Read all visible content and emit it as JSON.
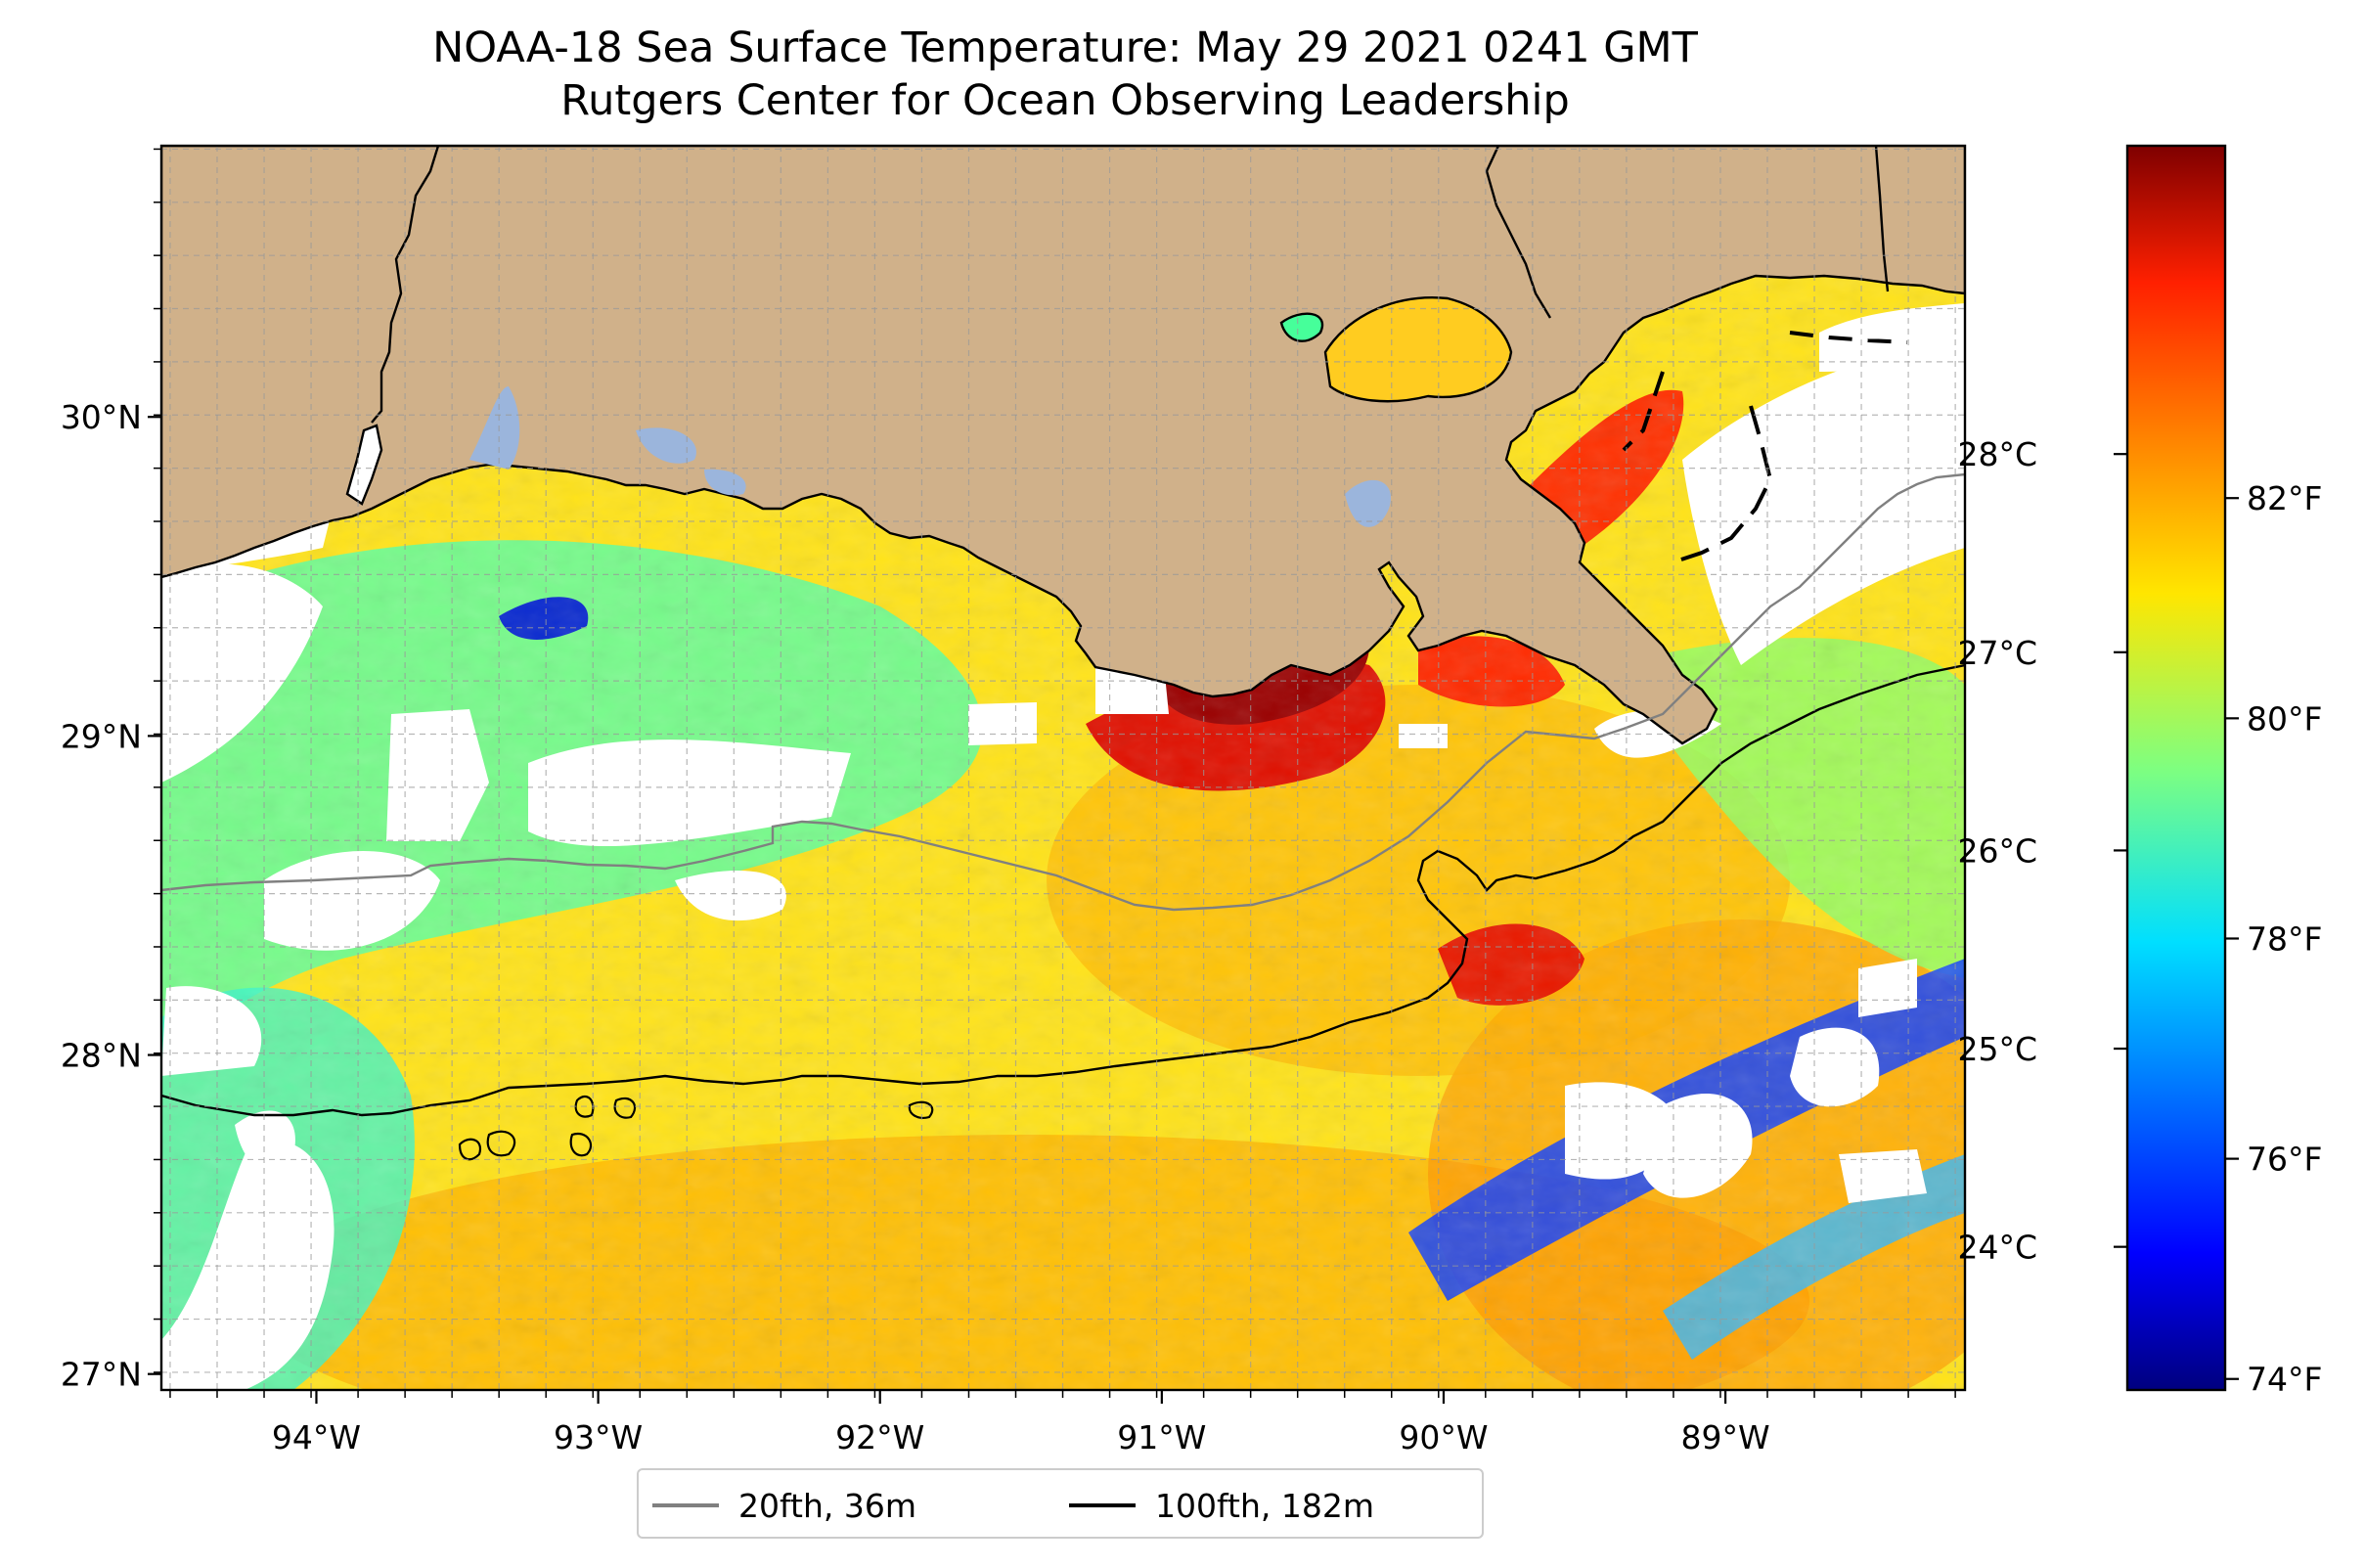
{
  "title": "NOAA-18 Sea Surface Temperature: May 29 2021 0241 GMT",
  "subtitle": "Rutgers Center for Ocean Observing Leadership",
  "map": {
    "extent": {
      "lon_min": -94.55,
      "lon_max": -88.15,
      "lat_min": 26.95,
      "lat_max": 30.85
    },
    "lon_ticks": [
      {
        "value": -94,
        "label": "94°W"
      },
      {
        "value": -93,
        "label": "93°W"
      },
      {
        "value": -92,
        "label": "92°W"
      },
      {
        "value": -91,
        "label": "91°W"
      },
      {
        "value": -90,
        "label": "90°W"
      },
      {
        "value": -89,
        "label": "89°W"
      }
    ],
    "lat_ticks": [
      {
        "value": 27,
        "label": "27°N"
      },
      {
        "value": 28,
        "label": "28°N"
      },
      {
        "value": 29,
        "label": "29°N"
      },
      {
        "value": 30,
        "label": "30°N"
      }
    ],
    "grid_step_deg": 0.1667,
    "colors": {
      "land": "#d0b18a",
      "cloud_mask": "#ffffff",
      "inland_water": "#9bb5dc",
      "grid": "#999999"
    }
  },
  "colorbar": {
    "colormap": "jet",
    "range_f": [
      73.9,
      85.2
    ],
    "celsius_ticks": [
      {
        "value": 24,
        "label": "24°C"
      },
      {
        "value": 25,
        "label": "25°C"
      },
      {
        "value": 26,
        "label": "26°C"
      },
      {
        "value": 27,
        "label": "27°C"
      },
      {
        "value": 28,
        "label": "28°C"
      }
    ],
    "fahrenheit_ticks": [
      {
        "value": 74,
        "label": "74°F"
      },
      {
        "value": 76,
        "label": "76°F"
      },
      {
        "value": 78,
        "label": "78°F"
      },
      {
        "value": 80,
        "label": "80°F"
      },
      {
        "value": 82,
        "label": "82°F"
      }
    ]
  },
  "legend": {
    "items": [
      {
        "label": "20fth, 36m",
        "color": "#808080"
      },
      {
        "label": "100fth, 182m",
        "color": "#000000"
      }
    ]
  }
}
